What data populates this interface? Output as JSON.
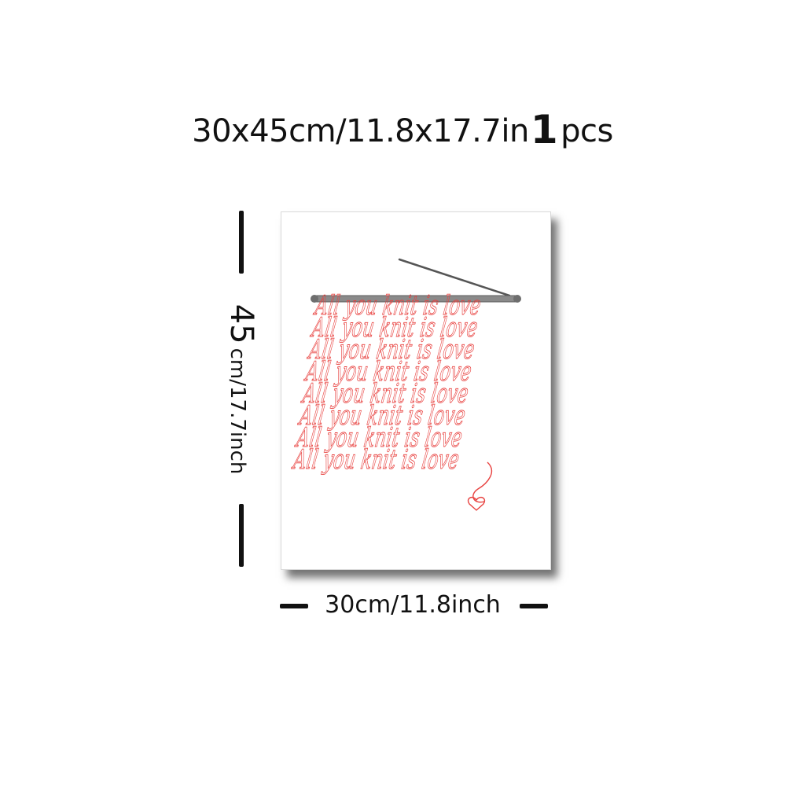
{
  "title": {
    "size": "30x45cm/11.8x17.7in",
    "quantity": "1",
    "unit": "pcs"
  },
  "height_label": {
    "number": "45",
    "rest": "cm/17.7inch"
  },
  "width_label": "30cm/11.8inch",
  "poster": {
    "lines": [
      "All you knit is love",
      "All you knit is love",
      "All you knit is love",
      "All you knit is love",
      "All you knit is love",
      "All you knit is love",
      "All you knit is love",
      "All you knit is love"
    ],
    "ink_color": "#e8413f",
    "needle_color": "#8a8a8a"
  }
}
